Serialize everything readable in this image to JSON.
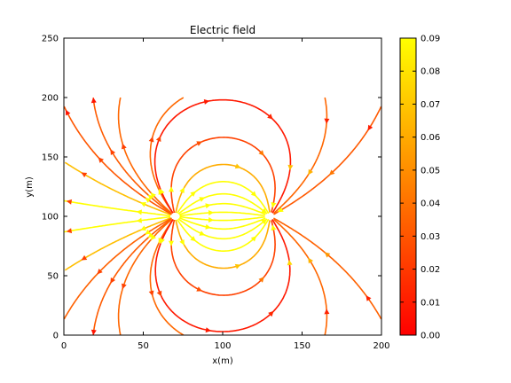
{
  "chart_data": {
    "type": "streamplot",
    "title": "Electric field",
    "xlabel": "x(m)",
    "ylabel": "y(m)",
    "xlim": [
      0,
      200
    ],
    "ylim": [
      0,
      250
    ],
    "xticks": [
      "0",
      "50",
      "100",
      "150",
      "200"
    ],
    "yticks": [
      "0",
      "50",
      "100",
      "150",
      "200",
      "250"
    ],
    "colorbar": {
      "range": [
        0.0,
        0.09
      ],
      "ticks": [
        "0.00",
        "0.01",
        "0.02",
        "0.03",
        "0.04",
        "0.05",
        "0.06",
        "0.07",
        "0.08",
        "0.09"
      ],
      "colormap": "autumn",
      "colors": [
        "#ff0000",
        "#ffff00"
      ]
    },
    "field": {
      "domain_x": [
        0,
        200
      ],
      "domain_y": [
        0,
        200
      ],
      "charges": [
        {
          "x": 70,
          "y": 100,
          "q": 1
        },
        {
          "x": 130,
          "y": 100,
          "q": -1
        }
      ],
      "magnitude_range": [
        0.0,
        0.09
      ]
    },
    "grid": false
  }
}
